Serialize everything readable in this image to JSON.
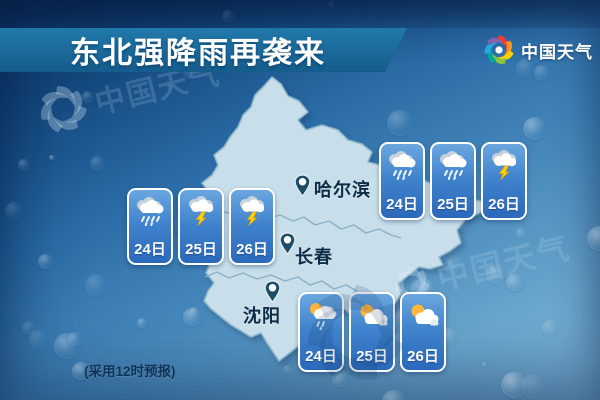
{
  "title": {
    "text": "东北强降雨再袭来"
  },
  "brand": {
    "name": "中国天气",
    "logo_icon": "pinwheel-logo-icon",
    "petal_colors": [
      "#ef3e33",
      "#f7941d",
      "#ffd400",
      "#8dc63f",
      "#00a79d",
      "#27aae1",
      "#8660a8"
    ]
  },
  "watermarks": [
    {
      "text": "中国天气"
    },
    {
      "text": "中国天气"
    }
  ],
  "cities": [
    {
      "name": "哈尔滨"
    },
    {
      "name": "长春"
    },
    {
      "name": "沈阳"
    }
  ],
  "panels": [
    {
      "region": "west",
      "cards": [
        {
          "date": "24日",
          "icon": "rain"
        },
        {
          "date": "25日",
          "icon": "thunderstorm"
        },
        {
          "date": "26日",
          "icon": "thunderstorm"
        }
      ]
    },
    {
      "region": "harbin-area",
      "cards": [
        {
          "date": "24日",
          "icon": "rain"
        },
        {
          "date": "25日",
          "icon": "rain"
        },
        {
          "date": "26日",
          "icon": "thunderstorm"
        }
      ]
    },
    {
      "region": "shenyang-area",
      "cards": [
        {
          "date": "24日",
          "icon": "shower-sun"
        },
        {
          "date": "25日",
          "icon": "partly-cloudy"
        },
        {
          "date": "26日",
          "icon": "partly-cloudy"
        }
      ]
    }
  ],
  "footnote": {
    "text": "(采用12时预报)"
  },
  "colors": {
    "banner": "#1b6b9e",
    "title_text": "#ffffff",
    "card_fill": "#2e6fbf",
    "card_border": "#ffffff",
    "map_fill": "#c8dfeb",
    "lightning": "#ffd400",
    "city_text": "#0e2c47",
    "background_top": "#0b2d58",
    "background_bottom": "#7db1d3"
  }
}
